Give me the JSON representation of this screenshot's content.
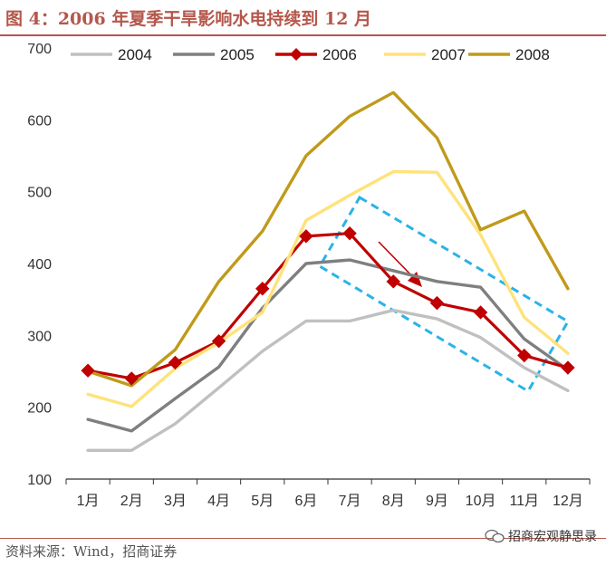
{
  "figure": {
    "title": "图 4：2006 年夏季干旱影响水电持续到 12 月",
    "source": "资料来源：Wind，招商证券",
    "watermark": "招商宏观静思录"
  },
  "chart_data": {
    "type": "line",
    "title": "图 4：2006 年夏季干旱影响水电持续到 12 月",
    "xlabel": "",
    "ylabel": "",
    "categories": [
      "1月",
      "2月",
      "3月",
      "4月",
      "5月",
      "6月",
      "7月",
      "8月",
      "9月",
      "10月",
      "11月",
      "12月"
    ],
    "ylim": [
      100,
      700
    ],
    "yticks": [
      100,
      200,
      300,
      400,
      500,
      600,
      700
    ],
    "grid": false,
    "legend_position": "top",
    "series": [
      {
        "name": "2004",
        "color": "#c0c0c0",
        "marker": "none",
        "values": [
          140,
          140,
          177,
          227,
          278,
          320,
          320,
          335,
          323,
          297,
          255,
          223
        ]
      },
      {
        "name": "2005",
        "color": "#7f7f7f",
        "marker": "none",
        "values": [
          183,
          167,
          212,
          256,
          338,
          400,
          405,
          390,
          375,
          367,
          295,
          252
        ]
      },
      {
        "name": "2006",
        "color": "#c00000",
        "marker": "diamond",
        "values": [
          251,
          240,
          262,
          292,
          365,
          438,
          442,
          375,
          345,
          332,
          272,
          255
        ]
      },
      {
        "name": "2007",
        "color": "#ffe27a",
        "marker": "none",
        "values": [
          218,
          201,
          254,
          290,
          332,
          460,
          495,
          528,
          527,
          440,
          325,
          275
        ]
      },
      {
        "name": "2008",
        "color": "#c09a1a",
        "marker": "none",
        "values": [
          250,
          230,
          280,
          375,
          445,
          550,
          605,
          638,
          575,
          447,
          473,
          365
        ]
      }
    ],
    "annotations": [
      {
        "type": "dashed-rotated-box",
        "color": "#2ab3e6",
        "from_category": "6月",
        "to_category": "12月"
      },
      {
        "type": "arrow",
        "color": "#c00000",
        "direction": "down-right",
        "near_category": "8月"
      }
    ]
  }
}
